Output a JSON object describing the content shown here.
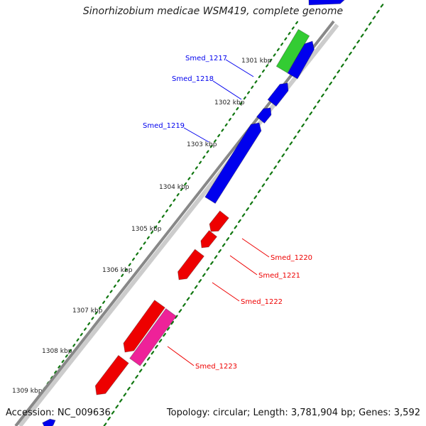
{
  "title": "Sinorhizobium medicae WSM419, complete genome",
  "footer": {
    "accession": "Accession: NC_009636",
    "summary": "Topology: circular; Length: 3,781,904 bp; Genes: 3,592"
  },
  "colors": {
    "forward_gene": "#0000ee",
    "reverse_gene": "#ee0000",
    "rna_gene": "#33cc33",
    "pseudo_gene": "#ee2299",
    "backbone": "#888888",
    "tick": "#117711"
  },
  "ruler_labels": [
    "1301 kbp",
    "1302 kbp",
    "1303 kbp",
    "1304 kbp",
    "1305 kbp",
    "1306 kbp",
    "1307 kbp",
    "1308 kbp",
    "1309 kbp"
  ],
  "gene_labels": [
    {
      "text": "Smed_1217",
      "strand": "forward"
    },
    {
      "text": "Smed_1218",
      "strand": "forward"
    },
    {
      "text": "Smed_1219",
      "strand": "forward"
    },
    {
      "text": "Smed_1220",
      "strand": "reverse"
    },
    {
      "text": "Smed_1221",
      "strand": "reverse"
    },
    {
      "text": "Smed_1222",
      "strand": "reverse"
    },
    {
      "text": "Smed_1223",
      "strand": "reverse"
    }
  ]
}
